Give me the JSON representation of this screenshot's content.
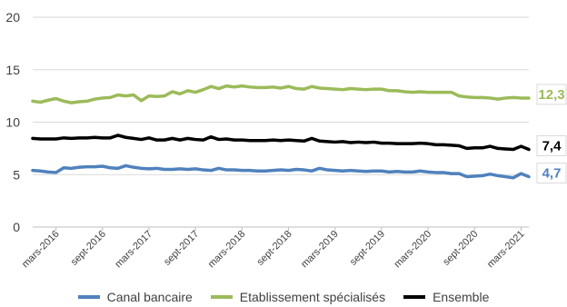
{
  "chart_data": {
    "type": "line",
    "title": "",
    "xlabel": "",
    "ylabel": "",
    "ylim": [
      0,
      20
    ],
    "yticks": [
      "0",
      "5",
      "10",
      "15",
      "20"
    ],
    "grid": true,
    "legend_position": "bottom",
    "x_start": "2015-12",
    "xticks": [
      {
        "label": "mars-2016",
        "index": 3
      },
      {
        "label": "sept-2016",
        "index": 9
      },
      {
        "label": "mars-2017",
        "index": 15
      },
      {
        "label": "sept-2017",
        "index": 21
      },
      {
        "label": "mars-2018",
        "index": 27
      },
      {
        "label": "sept-2018",
        "index": 33
      },
      {
        "label": "mars-2019",
        "index": 39
      },
      {
        "label": "sept-2019",
        "index": 45
      },
      {
        "label": "mars-2020",
        "index": 51
      },
      {
        "label": "sept-2020",
        "index": 57
      },
      {
        "label": "mars-2021",
        "index": 63
      }
    ],
    "series": [
      {
        "name": "Canal bancaire",
        "color": "#4f81bd",
        "end_label": "4,7",
        "values": [
          5.4,
          5.35,
          5.25,
          5.2,
          5.65,
          5.6,
          5.7,
          5.75,
          5.75,
          5.8,
          5.65,
          5.6,
          5.85,
          5.7,
          5.6,
          5.55,
          5.6,
          5.5,
          5.5,
          5.55,
          5.5,
          5.55,
          5.45,
          5.4,
          5.6,
          5.45,
          5.45,
          5.4,
          5.4,
          5.35,
          5.35,
          5.4,
          5.45,
          5.4,
          5.5,
          5.45,
          5.35,
          5.6,
          5.45,
          5.4,
          5.35,
          5.4,
          5.35,
          5.3,
          5.35,
          5.35,
          5.25,
          5.3,
          5.25,
          5.25,
          5.35,
          5.25,
          5.2,
          5.2,
          5.1,
          5.1,
          4.8,
          4.85,
          4.9,
          5.05,
          4.9,
          4.8,
          4.7,
          5.1,
          4.8
        ]
      },
      {
        "name": "Etablissement spécialisés",
        "color": "#9bbb59",
        "end_label": "12,3",
        "values": [
          12.0,
          11.9,
          12.1,
          12.25,
          12.0,
          11.85,
          11.95,
          12.0,
          12.2,
          12.3,
          12.35,
          12.6,
          12.5,
          12.6,
          12.05,
          12.5,
          12.45,
          12.5,
          12.9,
          12.7,
          13.0,
          12.85,
          13.1,
          13.4,
          13.2,
          13.45,
          13.35,
          13.45,
          13.35,
          13.3,
          13.3,
          13.35,
          13.25,
          13.4,
          13.2,
          13.15,
          13.4,
          13.25,
          13.2,
          13.15,
          13.1,
          13.2,
          13.15,
          13.1,
          13.15,
          13.15,
          13.0,
          13.0,
          12.9,
          12.85,
          12.9,
          12.85,
          12.85,
          12.85,
          12.85,
          12.5,
          12.4,
          12.35,
          12.35,
          12.3,
          12.2,
          12.3,
          12.35,
          12.3,
          12.3
        ]
      },
      {
        "name": "Ensemble",
        "color": "#000000",
        "end_label": "7,4",
        "values": [
          8.45,
          8.4,
          8.4,
          8.4,
          8.5,
          8.45,
          8.5,
          8.5,
          8.55,
          8.5,
          8.5,
          8.75,
          8.55,
          8.45,
          8.35,
          8.5,
          8.3,
          8.3,
          8.45,
          8.3,
          8.45,
          8.35,
          8.3,
          8.6,
          8.35,
          8.4,
          8.3,
          8.3,
          8.25,
          8.25,
          8.25,
          8.3,
          8.25,
          8.3,
          8.25,
          8.2,
          8.45,
          8.2,
          8.15,
          8.1,
          8.15,
          8.05,
          8.1,
          8.05,
          8.1,
          8.0,
          8.0,
          7.95,
          7.95,
          7.95,
          8.0,
          7.95,
          7.85,
          7.85,
          7.8,
          7.75,
          7.5,
          7.55,
          7.55,
          7.7,
          7.5,
          7.45,
          7.4,
          7.7,
          7.4
        ]
      }
    ]
  }
}
